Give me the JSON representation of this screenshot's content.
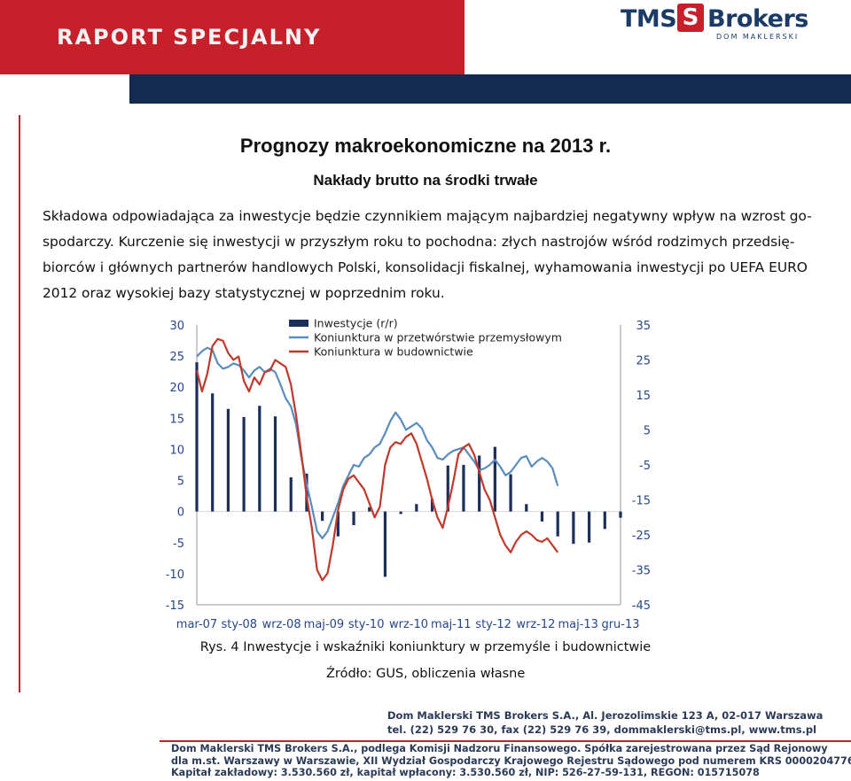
{
  "header": {
    "banner_label": "RAPORT SPECJALNY",
    "logo_tms": "TMS",
    "logo_s": "S",
    "logo_brokers": "Brokers",
    "logo_sub": "DOM MAKLERSKI",
    "colors": {
      "red": "#c8202a",
      "navy": "#132b4f"
    }
  },
  "content": {
    "title": "Prognozy makroekonomiczne na 2013 r.",
    "subtitle": "Nakłady brutto na środki trwałe",
    "paragraph_lines": [
      "Składowa odpowiadająca za inwestycje będzie czynnikiem mającym najbardziej negatywny wpływ na wzrost go-",
      "spodarczy. Kurczenie się inwestycji w przyszłym roku to pochodna: złych nastrojów wśród rodzimych przedsię-",
      "biorców i głównych partnerów handlowych Polski, konsolidacji fiskalnej, wyhamowania inwestycji po UEFA EURO",
      "2012 oraz wysokiej bazy statystycznej w poprzednim roku."
    ],
    "caption": "Rys. 4 Inwestycje i wskaźniki koniunktury w przemyśle i budownictwie",
    "source": "Źródło: GUS, obliczenia własne"
  },
  "chart_data": {
    "type": "bar",
    "legend": [
      "Inwestycje (r/r)",
      "Koniunktura w przetwórstwie przemysłowym",
      "Koniunktura w budownictwie"
    ],
    "legend_position": "top",
    "x_tick_labels": [
      "mar-07",
      "sty-08",
      "wrz-08",
      "maj-09",
      "sty-10",
      "wrz-10",
      "maj-11",
      "sty-12",
      "wrz-12",
      "maj-13",
      "gru-13"
    ],
    "x_range_months": [
      "2007-03",
      "2013-12"
    ],
    "y_left": {
      "ylim": [
        -15,
        30
      ],
      "ticks": [
        "30",
        "25",
        "20",
        "15",
        "10",
        "5",
        "0",
        "-5",
        "-10",
        "-15"
      ]
    },
    "y_right": {
      "ylim": [
        -45,
        35
      ],
      "ticks": [
        "35",
        "25",
        "15",
        "5",
        "-5",
        "-15",
        "-25",
        "-35",
        "-45"
      ]
    },
    "colors": {
      "investment": "#1c2f5a",
      "industry": "#5a8cc0",
      "construction": "#c0392b",
      "axis_text": "#27478c"
    },
    "series": [
      {
        "name": "Inwestycje (r/r)",
        "axis": "left",
        "kind": "bar",
        "x": [
          "2007-03",
          "2007-06",
          "2007-09",
          "2007-12",
          "2008-03",
          "2008-06",
          "2008-09",
          "2008-12",
          "2009-03",
          "2009-06",
          "2009-09",
          "2009-12",
          "2010-03",
          "2010-06",
          "2010-09",
          "2010-12",
          "2011-03",
          "2011-06",
          "2011-09",
          "2011-12",
          "2012-03",
          "2012-06",
          "2012-09",
          "2012-12",
          "2013-03",
          "2013-06",
          "2013-09",
          "2013-12"
        ],
        "values": [
          24,
          19,
          16.5,
          15.2,
          17,
          15.3,
          5.5,
          6.1,
          -1.5,
          -4,
          -2.2,
          0.7,
          -10.5,
          -0.4,
          1.2,
          2,
          7.4,
          7.5,
          9,
          10.4,
          6,
          1.2,
          -1.6,
          -4,
          -5.2,
          -5,
          -2.8,
          -1
        ],
        "y_axis_label": ""
      },
      {
        "name": "Koniunktura w przetwórstwie przemysłowym",
        "axis": "right",
        "kind": "line",
        "x": [
          "2007-03",
          "2007-04",
          "2007-05",
          "2007-06",
          "2007-07",
          "2007-08",
          "2007-09",
          "2007-10",
          "2007-11",
          "2007-12",
          "2008-01",
          "2008-02",
          "2008-03",
          "2008-04",
          "2008-05",
          "2008-06",
          "2008-07",
          "2008-08",
          "2008-09",
          "2008-10",
          "2008-11",
          "2008-12",
          "2009-01",
          "2009-02",
          "2009-03",
          "2009-04",
          "2009-05",
          "2009-06",
          "2009-07",
          "2009-08",
          "2009-09",
          "2009-10",
          "2009-11",
          "2009-12",
          "2010-01",
          "2010-02",
          "2010-03",
          "2010-04",
          "2010-05",
          "2010-06",
          "2010-07",
          "2010-08",
          "2010-09",
          "2010-10",
          "2010-11",
          "2010-12",
          "2011-01",
          "2011-02",
          "2011-03",
          "2011-04",
          "2011-05",
          "2011-06",
          "2011-07",
          "2011-08",
          "2011-09",
          "2011-10",
          "2011-11",
          "2011-12",
          "2012-01",
          "2012-02",
          "2012-03",
          "2012-04",
          "2012-05",
          "2012-06",
          "2012-07",
          "2012-08",
          "2012-09",
          "2012-10",
          "2012-11",
          "2012-12"
        ],
        "values": [
          26,
          27.5,
          28.5,
          27.8,
          24,
          22.5,
          23,
          24,
          23.5,
          22,
          20,
          22,
          23,
          21.5,
          22.5,
          21.5,
          18,
          14,
          11.7,
          6.5,
          -3,
          -10.5,
          -17,
          -24,
          -26,
          -24,
          -20,
          -16,
          -11,
          -8,
          -5,
          -5.5,
          -3,
          -2,
          0,
          1,
          4,
          7.5,
          10,
          8,
          5,
          6,
          7,
          5.5,
          2,
          0,
          -3,
          -3.5,
          -2,
          -1,
          -0.5,
          0,
          -2,
          -4,
          -6.5,
          -6,
          -5,
          -3.5,
          -5.5,
          -8,
          -7,
          -5,
          -3,
          -2.5,
          -5.5,
          -4,
          -3,
          -4,
          -6,
          -11
        ]
      },
      {
        "name": "Koniunktura w budownictwie",
        "axis": "right",
        "kind": "line",
        "x": [
          "2007-03",
          "2007-04",
          "2007-05",
          "2007-06",
          "2007-07",
          "2007-08",
          "2007-09",
          "2007-10",
          "2007-11",
          "2007-12",
          "2008-01",
          "2008-02",
          "2008-03",
          "2008-04",
          "2008-05",
          "2008-06",
          "2008-07",
          "2008-08",
          "2008-09",
          "2008-10",
          "2008-11",
          "2008-12",
          "2009-01",
          "2009-02",
          "2009-03",
          "2009-04",
          "2009-05",
          "2009-06",
          "2009-07",
          "2009-08",
          "2009-09",
          "2009-10",
          "2009-11",
          "2009-12",
          "2010-01",
          "2010-02",
          "2010-03",
          "2010-04",
          "2010-05",
          "2010-06",
          "2010-07",
          "2010-08",
          "2010-09",
          "2010-10",
          "2010-11",
          "2010-12",
          "2011-01",
          "2011-02",
          "2011-03",
          "2011-04",
          "2011-05",
          "2011-06",
          "2011-07",
          "2011-08",
          "2011-09",
          "2011-10",
          "2011-11",
          "2011-12",
          "2012-01",
          "2012-02",
          "2012-03",
          "2012-04",
          "2012-05",
          "2012-06",
          "2012-07",
          "2012-08",
          "2012-09",
          "2012-10",
          "2012-11",
          "2012-12"
        ],
        "values": [
          22,
          16,
          21,
          29,
          31,
          30.5,
          27,
          25,
          26,
          19,
          16,
          20,
          18,
          21.5,
          22,
          25,
          24,
          23,
          18,
          9,
          -2,
          -14,
          -23,
          -35,
          -38,
          -36,
          -28,
          -18,
          -12,
          -9,
          -8,
          -10,
          -12,
          -16,
          -20,
          -17,
          -5,
          0,
          1.5,
          1,
          3,
          4,
          1,
          -4,
          -9,
          -15,
          -20,
          -23,
          -17,
          -10,
          -2,
          0,
          1,
          -2,
          -7,
          -12,
          -15,
          -20,
          -25,
          -28,
          -30,
          -27,
          -25,
          -24,
          -25,
          -26.5,
          -27,
          -26,
          -28,
          -30
        ]
      }
    ]
  },
  "footer": {
    "address_lines": [
      "Dom Maklerski TMS Brokers S.A., Al. Jerozolimskie 123 A, 02-017 Warszawa",
      "tel. (22) 529 76 30, fax (22) 529 76 39, dommaklerski@tms.pl, www.tms.pl"
    ],
    "legal_lines": [
      "Dom Maklerski TMS Brokers S.A., podlega Komisji Nadzoru Finansowego. Spółka zarejestrowana przez Sąd Rejonowy",
      "dla m.st. Warszawy w Warszawie, XII Wydział Gospodarczy Krajowego Rejestru Sądowego pod numerem KRS 0000204776",
      "Kapitał zakładowy: 3.530.560 zł, kapitał wpłacony: 3.530.560 zł, NIP: 526-27-59-131, REGON: 015715078"
    ]
  }
}
